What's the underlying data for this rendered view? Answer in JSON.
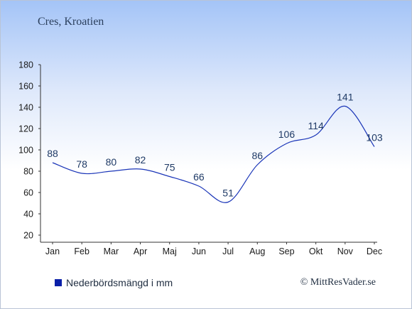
{
  "title": "Cres, Kroatien",
  "legend": {
    "label": "Nederbördsmängd i mm"
  },
  "credit": "© MittResVader.se",
  "colors": {
    "line": "#1a35b8",
    "legend_swatch": "#0a1fa8",
    "axis": "#333333"
  },
  "chart_data": {
    "type": "line",
    "categories": [
      "Jan",
      "Feb",
      "Mar",
      "Apr",
      "Maj",
      "Jun",
      "Jul",
      "Aug",
      "Sep",
      "Okt",
      "Nov",
      "Dec"
    ],
    "series": [
      {
        "name": "Nederbördsmängd i mm",
        "values": [
          88,
          78,
          80,
          82,
          75,
          66,
          51,
          86,
          106,
          114,
          141,
          103
        ]
      }
    ],
    "yticks": [
      20,
      40,
      60,
      80,
      100,
      120,
      140,
      160,
      180
    ],
    "ylim": [
      20,
      180
    ],
    "grid": false,
    "legend_position": "bottom-left"
  }
}
